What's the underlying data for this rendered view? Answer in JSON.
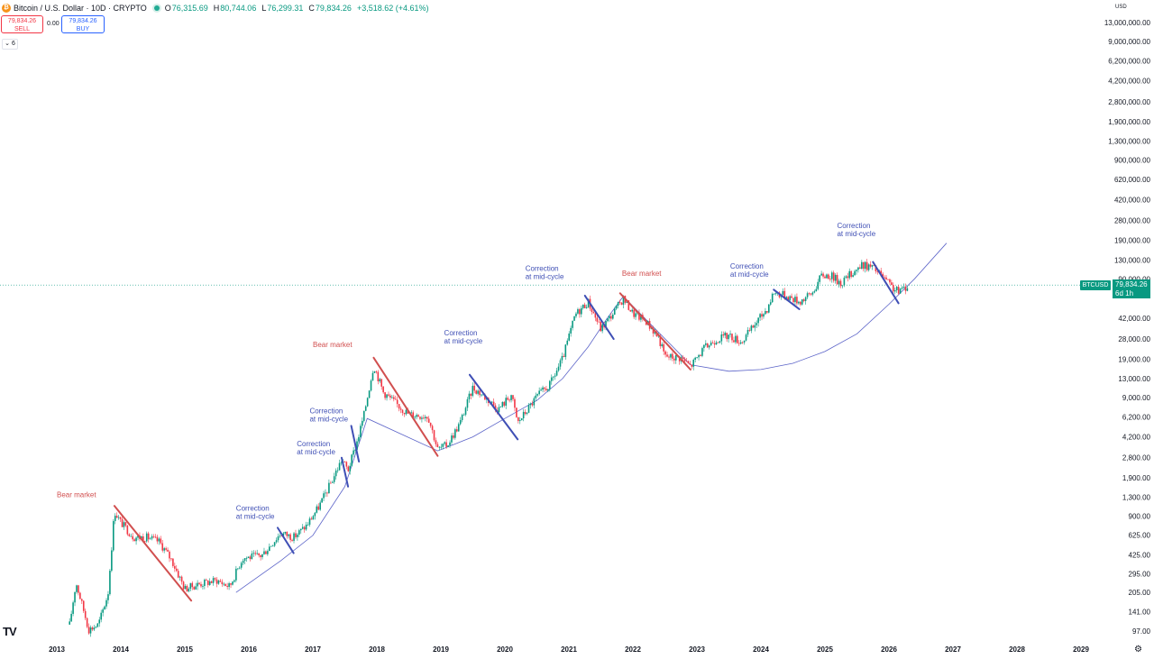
{
  "header": {
    "coin_glyph": "₿",
    "symbol": "Bitcoin / U.S. Dollar · 10D · CRYPTO",
    "open_label": "O",
    "open": "76,315.69",
    "high_label": "H",
    "high": "80,744.06",
    "low_label": "L",
    "low": "76,299.31",
    "close_label": "C",
    "close": "79,834.26",
    "change": "+3,518.62 (+4.61%)",
    "sell_price": "79,834.26",
    "sell_label": "SELL",
    "spread": "0.00",
    "buy_price": "79,834.26",
    "buy_label": "BUY",
    "indicator_toggle": "⌄ 6"
  },
  "price_axis": {
    "currency": "USD",
    "scale": "log",
    "ticks": [
      "13,000,000.00",
      "9,000,000.00",
      "6,200,000.00",
      "4,200,000.00",
      "2,800,000.00",
      "1,900,000.00",
      "1,300,000.00",
      "900,000.00",
      "620,000.00",
      "420,000.00",
      "280,000.00",
      "190,000.00",
      "130,000.00",
      "90,000.00",
      "42,000.00",
      "28,000.00",
      "19,000.00",
      "13,000.00",
      "9,000.00",
      "6,200.00",
      "4,200.00",
      "2,800.00",
      "1,900.00",
      "1,300.00",
      "900.00",
      "625.00",
      "425.00",
      "295.00",
      "205.00",
      "141.00",
      "97.00"
    ],
    "current_symbol": "BTCUSD",
    "current_price": "79,834.26",
    "countdown": "6d 1h"
  },
  "time_axis": {
    "ticks": [
      "2013",
      "2014",
      "2015",
      "2016",
      "2017",
      "2018",
      "2019",
      "2020",
      "2021",
      "2022",
      "2023",
      "2024",
      "2025",
      "2026",
      "2027",
      "2028",
      "2029"
    ]
  },
  "branding": {
    "logo": "TV",
    "settings_glyph": "⚙"
  },
  "colors": {
    "up": "#089981",
    "down": "#f23645",
    "bear": "#d14f4f",
    "correction": "#3f4fb5",
    "curve": "#5b63c8"
  },
  "chart_data": {
    "type": "candlestick",
    "title": "Bitcoin / U.S. Dollar · 10D · CRYPTO",
    "y_scale": "log",
    "ylabel": "USD",
    "xlabel": "",
    "grid": false,
    "points": [
      {
        "x": 2013.2,
        "y": 110
      },
      {
        "x": 2013.3,
        "y": 250
      },
      {
        "x": 2013.5,
        "y": 100
      },
      {
        "x": 2013.65,
        "y": 110
      },
      {
        "x": 2013.8,
        "y": 200
      },
      {
        "x": 2013.9,
        "y": 1000
      },
      {
        "x": 2014.0,
        "y": 800
      },
      {
        "x": 2014.2,
        "y": 600
      },
      {
        "x": 2014.4,
        "y": 600
      },
      {
        "x": 2014.6,
        "y": 550
      },
      {
        "x": 2014.8,
        "y": 380
      },
      {
        "x": 2015.0,
        "y": 220
      },
      {
        "x": 2015.2,
        "y": 240
      },
      {
        "x": 2015.5,
        "y": 260
      },
      {
        "x": 2015.7,
        "y": 230
      },
      {
        "x": 2015.9,
        "y": 400
      },
      {
        "x": 2016.2,
        "y": 420
      },
      {
        "x": 2016.5,
        "y": 650
      },
      {
        "x": 2016.7,
        "y": 600
      },
      {
        "x": 2016.9,
        "y": 750
      },
      {
        "x": 2017.1,
        "y": 1100
      },
      {
        "x": 2017.3,
        "y": 1800
      },
      {
        "x": 2017.45,
        "y": 2700
      },
      {
        "x": 2017.55,
        "y": 2200
      },
      {
        "x": 2017.7,
        "y": 4000
      },
      {
        "x": 2017.8,
        "y": 6500
      },
      {
        "x": 2017.95,
        "y": 17000
      },
      {
        "x": 2018.1,
        "y": 10000
      },
      {
        "x": 2018.3,
        "y": 8000
      },
      {
        "x": 2018.5,
        "y": 6500
      },
      {
        "x": 2018.8,
        "y": 6300
      },
      {
        "x": 2018.95,
        "y": 3300
      },
      {
        "x": 2019.1,
        "y": 3600
      },
      {
        "x": 2019.3,
        "y": 5500
      },
      {
        "x": 2019.5,
        "y": 11000
      },
      {
        "x": 2019.7,
        "y": 9000
      },
      {
        "x": 2019.9,
        "y": 7200
      },
      {
        "x": 2020.1,
        "y": 9500
      },
      {
        "x": 2020.2,
        "y": 5500
      },
      {
        "x": 2020.5,
        "y": 9200
      },
      {
        "x": 2020.7,
        "y": 11500
      },
      {
        "x": 2020.9,
        "y": 19000
      },
      {
        "x": 2021.1,
        "y": 45000
      },
      {
        "x": 2021.3,
        "y": 58000
      },
      {
        "x": 2021.5,
        "y": 34000
      },
      {
        "x": 2021.7,
        "y": 47000
      },
      {
        "x": 2021.85,
        "y": 62000
      },
      {
        "x": 2022.0,
        "y": 46000
      },
      {
        "x": 2022.2,
        "y": 40000
      },
      {
        "x": 2022.4,
        "y": 29000
      },
      {
        "x": 2022.5,
        "y": 20000
      },
      {
        "x": 2022.75,
        "y": 19500
      },
      {
        "x": 2022.9,
        "y": 16500
      },
      {
        "x": 2023.1,
        "y": 23000
      },
      {
        "x": 2023.3,
        "y": 28000
      },
      {
        "x": 2023.5,
        "y": 30000
      },
      {
        "x": 2023.7,
        "y": 26500
      },
      {
        "x": 2023.9,
        "y": 37000
      },
      {
        "x": 2024.1,
        "y": 51000
      },
      {
        "x": 2024.2,
        "y": 70000
      },
      {
        "x": 2024.4,
        "y": 65000
      },
      {
        "x": 2024.6,
        "y": 58000
      },
      {
        "x": 2024.8,
        "y": 68000
      },
      {
        "x": 2024.95,
        "y": 97000
      },
      {
        "x": 2025.1,
        "y": 96000
      },
      {
        "x": 2025.25,
        "y": 83000
      },
      {
        "x": 2025.45,
        "y": 105000
      },
      {
        "x": 2025.6,
        "y": 118000
      },
      {
        "x": 2025.75,
        "y": 112000
      },
      {
        "x": 2025.85,
        "y": 100000
      },
      {
        "x": 2026.05,
        "y": 76000
      },
      {
        "x": 2026.15,
        "y": 70000
      },
      {
        "x": 2026.3,
        "y": 79834
      }
    ],
    "curve": [
      {
        "x": 2015.8,
        "y": 205
      },
      {
        "x": 2016.5,
        "y": 380
      },
      {
        "x": 2017.0,
        "y": 620
      },
      {
        "x": 2017.5,
        "y": 1600
      },
      {
        "x": 2017.85,
        "y": 6000
      },
      {
        "x": 2018.95,
        "y": 3200
      },
      {
        "x": 2019.5,
        "y": 4200
      },
      {
        "x": 2020.0,
        "y": 6000
      },
      {
        "x": 2020.5,
        "y": 8500
      },
      {
        "x": 2020.9,
        "y": 13000
      },
      {
        "x": 2021.3,
        "y": 24000
      },
      {
        "x": 2021.6,
        "y": 42000
      },
      {
        "x": 2021.85,
        "y": 64000
      },
      {
        "x": 2022.9,
        "y": 17000
      },
      {
        "x": 2023.5,
        "y": 15000
      },
      {
        "x": 2024.0,
        "y": 15500
      },
      {
        "x": 2024.5,
        "y": 17500
      },
      {
        "x": 2025.0,
        "y": 22000
      },
      {
        "x": 2025.5,
        "y": 31000
      },
      {
        "x": 2026.0,
        "y": 55000
      },
      {
        "x": 2026.4,
        "y": 90000
      },
      {
        "x": 2026.9,
        "y": 180000
      }
    ],
    "trend_lines": [
      {
        "kind": "bear",
        "x1": 2013.9,
        "y1": 1100,
        "x2": 2015.1,
        "y2": 175
      },
      {
        "kind": "correction",
        "x1": 2016.45,
        "y1": 720,
        "x2": 2016.7,
        "y2": 440
      },
      {
        "kind": "correction",
        "x1": 2017.45,
        "y1": 2800,
        "x2": 2017.55,
        "y2": 1600
      },
      {
        "kind": "correction",
        "x1": 2017.6,
        "y1": 5200,
        "x2": 2017.72,
        "y2": 2600
      },
      {
        "kind": "bear",
        "x1": 2017.95,
        "y1": 19500,
        "x2": 2018.95,
        "y2": 2900
      },
      {
        "kind": "correction",
        "x1": 2019.45,
        "y1": 14000,
        "x2": 2020.2,
        "y2": 4000
      },
      {
        "kind": "correction",
        "x1": 2021.25,
        "y1": 65000,
        "x2": 2021.7,
        "y2": 28000
      },
      {
        "kind": "bear",
        "x1": 2021.8,
        "y1": 68000,
        "x2": 2022.9,
        "y2": 15500
      },
      {
        "kind": "correction",
        "x1": 2024.2,
        "y1": 73000,
        "x2": 2024.6,
        "y2": 50000
      },
      {
        "kind": "correction",
        "x1": 2025.75,
        "y1": 125000,
        "x2": 2026.15,
        "y2": 56000
      }
    ],
    "annotations": [
      {
        "kind": "bear",
        "lines": [
          "Bear market"
        ],
        "x": 2013.0,
        "y": 1300
      },
      {
        "kind": "correction",
        "lines": [
          "Correction",
          "at mid-cycle"
        ],
        "x": 2015.8,
        "y": 1000
      },
      {
        "kind": "correction",
        "lines": [
          "Correction",
          "at mid-cycle"
        ],
        "x": 2016.75,
        "y": 3500
      },
      {
        "kind": "correction",
        "lines": [
          "Correction",
          "at mid-cycle"
        ],
        "x": 2016.95,
        "y": 6600
      },
      {
        "kind": "bear",
        "lines": [
          "Bear market"
        ],
        "x": 2017.0,
        "y": 24000
      },
      {
        "kind": "correction",
        "lines": [
          "Correction",
          "at mid-cycle"
        ],
        "x": 2019.05,
        "y": 30000
      },
      {
        "kind": "correction",
        "lines": [
          "Correction",
          "at mid-cycle"
        ],
        "x": 2020.32,
        "y": 105000
      },
      {
        "kind": "bear",
        "lines": [
          "Bear market"
        ],
        "x": 2021.83,
        "y": 95000
      },
      {
        "kind": "correction",
        "lines": [
          "Correction",
          "at mid-cycle"
        ],
        "x": 2023.52,
        "y": 110000
      },
      {
        "kind": "correction",
        "lines": [
          "Correction",
          "at mid-cycle"
        ],
        "x": 2025.19,
        "y": 240000
      }
    ]
  }
}
